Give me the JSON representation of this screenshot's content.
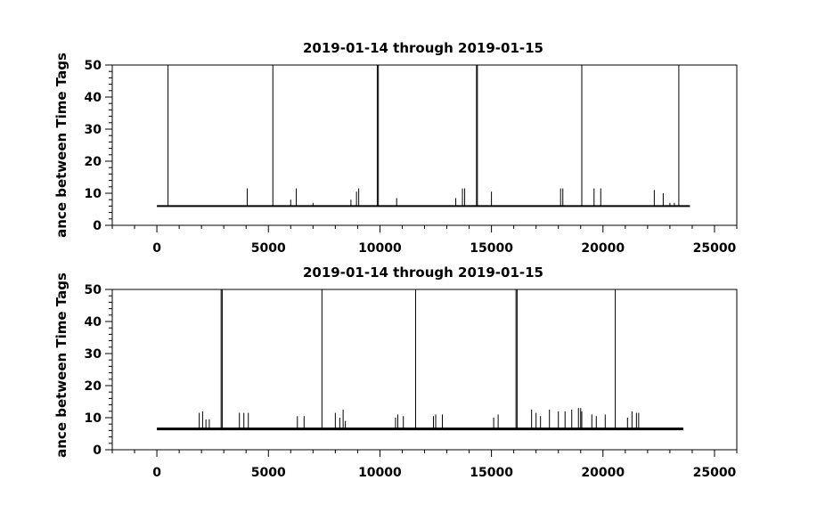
{
  "chart_data": [
    {
      "type": "line",
      "title": "2019-01-14 through 2019-01-15",
      "ylabel": "ance between Time Tags",
      "xlabel": "",
      "xlim": [
        -2000,
        26000
      ],
      "ylim": [
        0,
        50
      ],
      "xticks": [
        0,
        5000,
        10000,
        15000,
        20000,
        25000
      ],
      "xtick_labels": [
        "0",
        "5000",
        "10000",
        "15000",
        "20000",
        "25000"
      ],
      "yticks": [
        0,
        10,
        20,
        30,
        40,
        50
      ],
      "ytick_labels": [
        "0",
        "10",
        "20",
        "30",
        "40",
        "50"
      ],
      "grid": false,
      "series": [
        {
          "baseline": 6,
          "x_range": [
            0,
            23900
          ],
          "tall_spikes": [
            {
              "x": 500,
              "y": 50
            },
            {
              "x": 5200,
              "y": 50
            },
            {
              "x": 9880,
              "y": 50
            },
            {
              "x": 9930,
              "y": 50
            },
            {
              "x": 14330,
              "y": 50
            },
            {
              "x": 14370,
              "y": 50
            },
            {
              "x": 19050,
              "y": 50
            },
            {
              "x": 23400,
              "y": 50
            }
          ],
          "spikes": [
            {
              "x": 4050,
              "y": 11.5
            },
            {
              "x": 6000,
              "y": 8
            },
            {
              "x": 6250,
              "y": 11.5
            },
            {
              "x": 7000,
              "y": 7
            },
            {
              "x": 8700,
              "y": 8
            },
            {
              "x": 8950,
              "y": 10.5
            },
            {
              "x": 9050,
              "y": 11.5
            },
            {
              "x": 10750,
              "y": 8.5
            },
            {
              "x": 13400,
              "y": 8.5
            },
            {
              "x": 13700,
              "y": 11.5
            },
            {
              "x": 13800,
              "y": 11.5
            },
            {
              "x": 15000,
              "y": 10.5
            },
            {
              "x": 18100,
              "y": 11.5
            },
            {
              "x": 18200,
              "y": 11.5
            },
            {
              "x": 19600,
              "y": 11.5
            },
            {
              "x": 19900,
              "y": 11.5
            },
            {
              "x": 22300,
              "y": 11
            },
            {
              "x": 22700,
              "y": 10
            },
            {
              "x": 23000,
              "y": 7
            },
            {
              "x": 23200,
              "y": 7
            }
          ]
        }
      ]
    },
    {
      "type": "line",
      "title": "2019-01-14 through 2019-01-15",
      "ylabel": "ance between Time Tags",
      "xlabel": "",
      "xlim": [
        -2000,
        26000
      ],
      "ylim": [
        0,
        50
      ],
      "xticks": [
        0,
        5000,
        10000,
        15000,
        20000,
        25000
      ],
      "xtick_labels": [
        "0",
        "5000",
        "10000",
        "15000",
        "20000",
        "25000"
      ],
      "yticks": [
        0,
        10,
        20,
        30,
        40,
        50
      ],
      "ytick_labels": [
        "0",
        "10",
        "20",
        "30",
        "40",
        "50"
      ],
      "grid": false,
      "series": [
        {
          "baseline": 6.5,
          "x_range": [
            0,
            23600
          ],
          "tall_spikes": [
            {
              "x": 2880,
              "y": 50
            },
            {
              "x": 2930,
              "y": 50
            },
            {
              "x": 7400,
              "y": 50
            },
            {
              "x": 11600,
              "y": 50
            },
            {
              "x": 16100,
              "y": 50
            },
            {
              "x": 16150,
              "y": 50
            },
            {
              "x": 20550,
              "y": 50
            }
          ],
          "spikes": [
            {
              "x": 1900,
              "y": 11.5
            },
            {
              "x": 2050,
              "y": 12
            },
            {
              "x": 2200,
              "y": 9.5
            },
            {
              "x": 2350,
              "y": 9.5
            },
            {
              "x": 3700,
              "y": 11.5
            },
            {
              "x": 3900,
              "y": 11.5
            },
            {
              "x": 4100,
              "y": 11.5
            },
            {
              "x": 6300,
              "y": 10.5
            },
            {
              "x": 6600,
              "y": 10.5
            },
            {
              "x": 8000,
              "y": 11.5
            },
            {
              "x": 8200,
              "y": 10
            },
            {
              "x": 8350,
              "y": 12.5
            },
            {
              "x": 8450,
              "y": 9
            },
            {
              "x": 10700,
              "y": 10
            },
            {
              "x": 10800,
              "y": 11
            },
            {
              "x": 11050,
              "y": 10.5
            },
            {
              "x": 12400,
              "y": 10.5
            },
            {
              "x": 12500,
              "y": 11
            },
            {
              "x": 12800,
              "y": 11
            },
            {
              "x": 15100,
              "y": 10
            },
            {
              "x": 15300,
              "y": 11
            },
            {
              "x": 16800,
              "y": 12.5
            },
            {
              "x": 17000,
              "y": 11.5
            },
            {
              "x": 17200,
              "y": 10.5
            },
            {
              "x": 17600,
              "y": 12.5
            },
            {
              "x": 18000,
              "y": 12
            },
            {
              "x": 18300,
              "y": 12
            },
            {
              "x": 18600,
              "y": 12.5
            },
            {
              "x": 18900,
              "y": 13
            },
            {
              "x": 19000,
              "y": 13
            },
            {
              "x": 19050,
              "y": 12
            },
            {
              "x": 19500,
              "y": 11
            },
            {
              "x": 19700,
              "y": 10.5
            },
            {
              "x": 20100,
              "y": 11
            },
            {
              "x": 21100,
              "y": 10
            },
            {
              "x": 21300,
              "y": 12
            },
            {
              "x": 21500,
              "y": 11.5
            },
            {
              "x": 21600,
              "y": 11.5
            }
          ]
        }
      ]
    }
  ]
}
